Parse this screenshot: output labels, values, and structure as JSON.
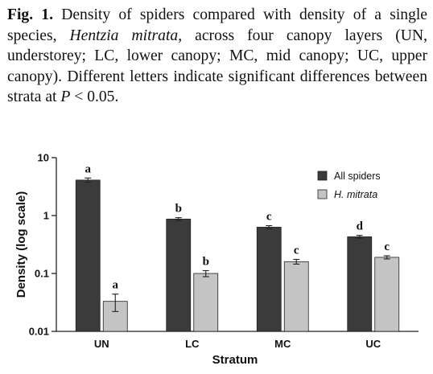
{
  "caption": {
    "label": "Fig. 1.",
    "text_1": " Density of spiders compared with density of a single species, ",
    "species": "Hentzia mitrata",
    "text_2": ", across four canopy layers (UN, understorey; LC, lower canopy; MC, mid canopy; UC, upper canopy). Different letters indicate significant differences between strata at ",
    "p_symbol": "P",
    "text_3": " < 0.05."
  },
  "chart_data": {
    "type": "bar",
    "scale": "log",
    "categories": [
      "UN",
      "LC",
      "MC",
      "UC"
    ],
    "xlabel": "Stratum",
    "ylabel": "Density (log scale)",
    "ylim": [
      0.01,
      10
    ],
    "yticks": [
      {
        "value": 10,
        "label": "10"
      },
      {
        "value": 1,
        "label": "1"
      },
      {
        "value": 0.1,
        "label": "0.1"
      },
      {
        "value": 0.01,
        "label": "0.01"
      }
    ],
    "legend_position": "top-right",
    "series": [
      {
        "name": "All spiders",
        "color": "#3b3b3b",
        "values": [
          4.1,
          0.87,
          0.63,
          0.43
        ],
        "error": [
          0.35,
          0.05,
          0.04,
          0.025
        ],
        "letters": [
          "a",
          "b",
          "c",
          "d"
        ]
      },
      {
        "name": "H. mitrata",
        "color": "#c4c4c4",
        "values": [
          0.033,
          0.1,
          0.16,
          0.19
        ],
        "error": [
          0.011,
          0.012,
          0.015,
          0.012
        ],
        "letters": [
          "a",
          "b",
          "c",
          "c"
        ]
      }
    ]
  }
}
